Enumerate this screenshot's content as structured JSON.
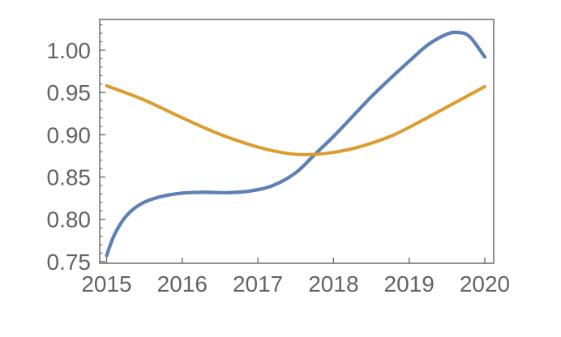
{
  "chart_data": {
    "type": "line",
    "title": "",
    "xlabel": "",
    "ylabel": "",
    "grid": false,
    "framed": true,
    "background_color": "#ffffff",
    "frame_color": "#757575",
    "tick_color": "#6a6a6a",
    "tick_label_color": "#636363",
    "xlim": [
      2014.909,
      2020.118
    ],
    "ylim": [
      0.748,
      1.0364
    ],
    "x_ticks": [
      {
        "value": 2015,
        "label": "2015"
      },
      {
        "value": 2016,
        "label": "2016"
      },
      {
        "value": 2017,
        "label": "2017"
      },
      {
        "value": 2018,
        "label": "2018"
      },
      {
        "value": 2019,
        "label": "2019"
      },
      {
        "value": 2020,
        "label": "2020"
      }
    ],
    "y_ticks": [
      {
        "value": 0.75,
        "label": "0.75"
      },
      {
        "value": 0.8,
        "label": "0.80"
      },
      {
        "value": 0.85,
        "label": "0.85"
      },
      {
        "value": 0.9,
        "label": "0.90"
      },
      {
        "value": 0.95,
        "label": "0.95"
      },
      {
        "value": 1.0,
        "label": "1.00"
      }
    ],
    "y_minor_tick_step": 0.01,
    "series": [
      {
        "name": "blue-curve",
        "color": "#5E81B5",
        "stroke_width": 4.3,
        "points": [
          [
            2015.0,
            0.757
          ],
          [
            2015.1,
            0.781
          ],
          [
            2015.25,
            0.803
          ],
          [
            2015.45,
            0.818
          ],
          [
            2015.7,
            0.8265
          ],
          [
            2016.0,
            0.831
          ],
          [
            2016.3,
            0.832
          ],
          [
            2016.6,
            0.8315
          ],
          [
            2016.9,
            0.8335
          ],
          [
            2017.2,
            0.84
          ],
          [
            2017.5,
            0.855
          ],
          [
            2017.75,
            0.8765
          ],
          [
            2018.0,
            0.898
          ],
          [
            2018.25,
            0.9215
          ],
          [
            2018.5,
            0.945
          ],
          [
            2018.75,
            0.9665
          ],
          [
            2019.0,
            0.987
          ],
          [
            2019.25,
            1.0065
          ],
          [
            2019.5,
            1.019
          ],
          [
            2019.65,
            1.021
          ],
          [
            2019.8,
            1.016
          ],
          [
            2020.0,
            0.992
          ]
        ]
      },
      {
        "name": "orange-curve",
        "color": "#DC9C2E",
        "stroke_width": 4.0,
        "points": [
          [
            2015.0,
            0.958
          ],
          [
            2015.5,
            0.941
          ],
          [
            2016.0,
            0.92
          ],
          [
            2016.5,
            0.9005
          ],
          [
            2017.0,
            0.8855
          ],
          [
            2017.35,
            0.8785
          ],
          [
            2017.6,
            0.8765
          ],
          [
            2017.9,
            0.878
          ],
          [
            2018.2,
            0.8825
          ],
          [
            2018.5,
            0.89
          ],
          [
            2018.8,
            0.9
          ],
          [
            2019.1,
            0.9135
          ],
          [
            2019.4,
            0.928
          ],
          [
            2019.7,
            0.9425
          ],
          [
            2020.0,
            0.957
          ]
        ]
      }
    ]
  }
}
